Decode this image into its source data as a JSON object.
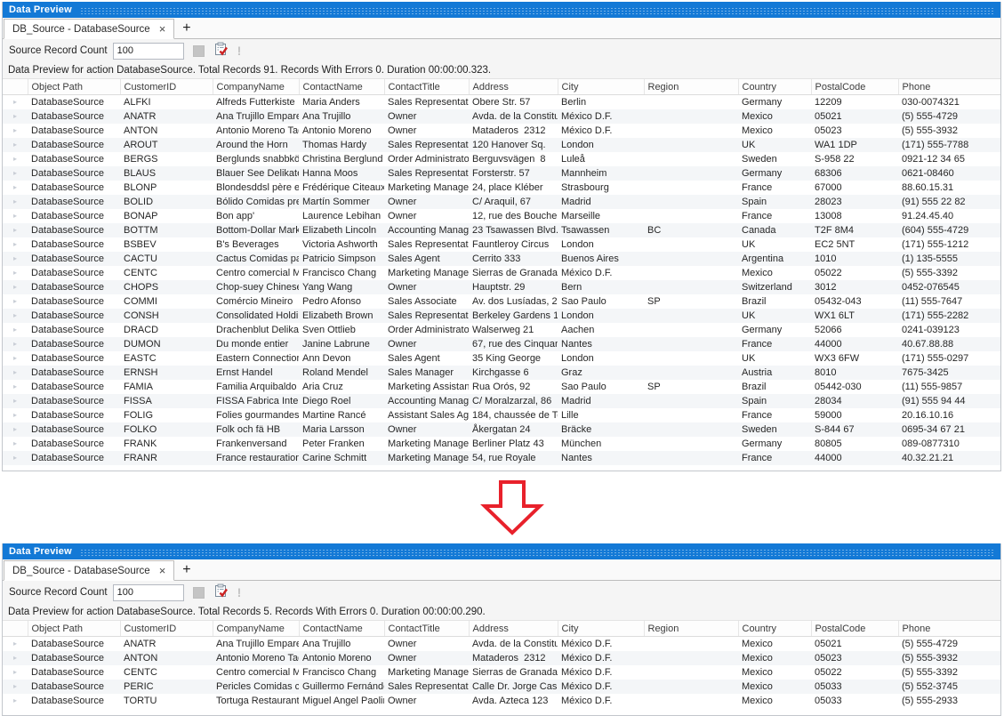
{
  "colors": {
    "titlebar": "#1379d6",
    "arrow": "#e8212b",
    "check": "#cc2222"
  },
  "icons": {
    "close_glyph": "×",
    "add_glyph": "+",
    "expander_glyph": "▸",
    "exclamation_glyph": "!"
  },
  "columns": [
    "Object Path",
    "CustomerID",
    "CompanyName",
    "ContactName",
    "ContactTitle",
    "Address",
    "City",
    "Region",
    "Country",
    "PostalCode",
    "Phone"
  ],
  "windows": [
    {
      "title": "Data Preview",
      "tab_label": "DB_Source - DatabaseSource",
      "record_count_label": "Source Record Count",
      "record_count_value": "100",
      "status_text": "Data Preview for action DatabaseSource. Total Records 91. Records With Errors 0. Duration 00:00:00.323.",
      "rows": [
        [
          "DatabaseSource",
          "ALFKI",
          "Alfreds Futterkiste",
          "Maria Anders",
          "Sales Representative",
          "Obere Str. 57",
          "Berlin",
          "",
          "Germany",
          "12209",
          "030-0074321"
        ],
        [
          "DatabaseSource",
          "ANATR",
          "Ana Trujillo Empareda",
          "Ana Trujillo",
          "Owner",
          "Avda. de la Constituci",
          "México D.F.",
          "",
          "Mexico",
          "05021",
          "(5) 555-4729"
        ],
        [
          "DatabaseSource",
          "ANTON",
          "Antonio Moreno Taqu",
          "Antonio Moreno",
          "Owner",
          "Mataderos  2312",
          "México D.F.",
          "",
          "Mexico",
          "05023",
          "(5) 555-3932"
        ],
        [
          "DatabaseSource",
          "AROUT",
          "Around the Horn",
          "Thomas Hardy",
          "Sales Representative",
          "120 Hanover Sq.",
          "London",
          "",
          "UK",
          "WA1 1DP",
          "(171) 555-7788"
        ],
        [
          "DatabaseSource",
          "BERGS",
          "Berglunds snabbköp",
          "Christina Berglund",
          "Order Administrator",
          "Berguvsvägen  8",
          "Luleå",
          "",
          "Sweden",
          "S-958 22",
          "0921-12 34 65"
        ],
        [
          "DatabaseSource",
          "BLAUS",
          "Blauer See Delikatesse",
          "Hanna Moos",
          "Sales Representative",
          "Forsterstr. 57",
          "Mannheim",
          "",
          "Germany",
          "68306",
          "0621-08460"
        ],
        [
          "DatabaseSource",
          "BLONP",
          "Blondesddsl père et fi",
          "Frédérique Citeaux",
          "Marketing Manager",
          "24, place Kléber",
          "Strasbourg",
          "",
          "France",
          "67000",
          "88.60.15.31"
        ],
        [
          "DatabaseSource",
          "BOLID",
          "Bólido Comidas prepa",
          "Martín Sommer",
          "Owner",
          "C/ Araquil, 67",
          "Madrid",
          "",
          "Spain",
          "28023",
          "(91) 555 22 82"
        ],
        [
          "DatabaseSource",
          "BONAP",
          "Bon app'",
          "Laurence Lebihan",
          "Owner",
          "12, rue des Bouchers",
          "Marseille",
          "",
          "France",
          "13008",
          "91.24.45.40"
        ],
        [
          "DatabaseSource",
          "BOTTM",
          "Bottom-Dollar Market",
          "Elizabeth Lincoln",
          "Accounting Manager",
          "23 Tsawassen Blvd.",
          "Tsawassen",
          "BC",
          "Canada",
          "T2F 8M4",
          "(604) 555-4729"
        ],
        [
          "DatabaseSource",
          "BSBEV",
          "B's Beverages",
          "Victoria Ashworth",
          "Sales Representative",
          "Fauntleroy Circus",
          "London",
          "",
          "UK",
          "EC2 5NT",
          "(171) 555-1212"
        ],
        [
          "DatabaseSource",
          "CACTU",
          "Cactus Comidas para l",
          "Patricio Simpson",
          "Sales Agent",
          "Cerrito 333",
          "Buenos Aires",
          "",
          "Argentina",
          "1010",
          "(1) 135-5555"
        ],
        [
          "DatabaseSource",
          "CENTC",
          "Centro comercial Moc",
          "Francisco Chang",
          "Marketing Manager",
          "Sierras de Granada 99",
          "México D.F.",
          "",
          "Mexico",
          "05022",
          "(5) 555-3392"
        ],
        [
          "DatabaseSource",
          "CHOPS",
          "Chop-suey Chinese",
          "Yang Wang",
          "Owner",
          "Hauptstr. 29",
          "Bern",
          "",
          "Switzerland",
          "3012",
          "0452-076545"
        ],
        [
          "DatabaseSource",
          "COMMI",
          "Comércio Mineiro",
          "Pedro Afonso",
          "Sales Associate",
          "Av. dos Lusíadas, 23",
          "Sao Paulo",
          "SP",
          "Brazil",
          "05432-043",
          "(11) 555-7647"
        ],
        [
          "DatabaseSource",
          "CONSH",
          "Consolidated Holding",
          "Elizabeth Brown",
          "Sales Representative",
          "Berkeley Gardens 12 I",
          "London",
          "",
          "UK",
          "WX1 6LT",
          "(171) 555-2282"
        ],
        [
          "DatabaseSource",
          "DRACD",
          "Drachenblut Delikates",
          "Sven Ottlieb",
          "Order Administrator",
          "Walserweg 21",
          "Aachen",
          "",
          "Germany",
          "52066",
          "0241-039123"
        ],
        [
          "DatabaseSource",
          "DUMON",
          "Du monde entier",
          "Janine Labrune",
          "Owner",
          "67, rue des Cinquante",
          "Nantes",
          "",
          "France",
          "44000",
          "40.67.88.88"
        ],
        [
          "DatabaseSource",
          "EASTC",
          "Eastern Connection",
          "Ann Devon",
          "Sales Agent",
          "35 King George",
          "London",
          "",
          "UK",
          "WX3 6FW",
          "(171) 555-0297"
        ],
        [
          "DatabaseSource",
          "ERNSH",
          "Ernst Handel",
          "Roland Mendel",
          "Sales Manager",
          "Kirchgasse 6",
          "Graz",
          "",
          "Austria",
          "8010",
          "7675-3425"
        ],
        [
          "DatabaseSource",
          "FAMIA",
          "Familia Arquibaldo",
          "Aria Cruz",
          "Marketing Assistant",
          "Rua Orós, 92",
          "Sao Paulo",
          "SP",
          "Brazil",
          "05442-030",
          "(11) 555-9857"
        ],
        [
          "DatabaseSource",
          "FISSA",
          "FISSA Fabrica Inter. Sa",
          "Diego Roel",
          "Accounting Manager",
          "C/ Moralzarzal, 86",
          "Madrid",
          "",
          "Spain",
          "28034",
          "(91) 555 94 44"
        ],
        [
          "DatabaseSource",
          "FOLIG",
          "Folies gourmandes",
          "Martine Rancé",
          "Assistant Sales Agent",
          "184, chaussée de Tour",
          "Lille",
          "",
          "France",
          "59000",
          "20.16.10.16"
        ],
        [
          "DatabaseSource",
          "FOLKO",
          "Folk och fä HB",
          "Maria Larsson",
          "Owner",
          "Åkergatan 24",
          "Bräcke",
          "",
          "Sweden",
          "S-844 67",
          "0695-34 67 21"
        ],
        [
          "DatabaseSource",
          "FRANK",
          "Frankenversand",
          "Peter Franken",
          "Marketing Manager",
          "Berliner Platz 43",
          "München",
          "",
          "Germany",
          "80805",
          "089-0877310"
        ],
        [
          "DatabaseSource",
          "FRANR",
          "France restauration",
          "Carine Schmitt",
          "Marketing Manager",
          "54, rue Royale",
          "Nantes",
          "",
          "France",
          "44000",
          "40.32.21.21"
        ]
      ]
    },
    {
      "title": "Data Preview",
      "tab_label": "DB_Source - DatabaseSource",
      "record_count_label": "Source Record Count",
      "record_count_value": "100",
      "status_text": "Data Preview for action DatabaseSource. Total Records 5. Records With Errors 0. Duration 00:00:00.290.",
      "rows": [
        [
          "DatabaseSource",
          "ANATR",
          "Ana Trujillo Empareda",
          "Ana Trujillo",
          "Owner",
          "Avda. de la Constituci",
          "México D.F.",
          "",
          "Mexico",
          "05021",
          "(5) 555-4729"
        ],
        [
          "DatabaseSource",
          "ANTON",
          "Antonio Moreno Taqu",
          "Antonio Moreno",
          "Owner",
          "Mataderos  2312",
          "México D.F.",
          "",
          "Mexico",
          "05023",
          "(5) 555-3932"
        ],
        [
          "DatabaseSource",
          "CENTC",
          "Centro comercial Moc",
          "Francisco Chang",
          "Marketing Manager",
          "Sierras de Granada 99",
          "México D.F.",
          "",
          "Mexico",
          "05022",
          "(5) 555-3392"
        ],
        [
          "DatabaseSource",
          "PERIC",
          "Pericles Comidas clási",
          "Guillermo Fernández",
          "Sales Representative",
          "Calle Dr. Jorge Cash 3",
          "México D.F.",
          "",
          "Mexico",
          "05033",
          "(5) 552-3745"
        ],
        [
          "DatabaseSource",
          "TORTU",
          "Tortuga Restaurante",
          "Miguel Angel Paolino",
          "Owner",
          "Avda. Azteca 123",
          "México D.F.",
          "",
          "Mexico",
          "05033",
          "(5) 555-2933"
        ]
      ]
    }
  ]
}
